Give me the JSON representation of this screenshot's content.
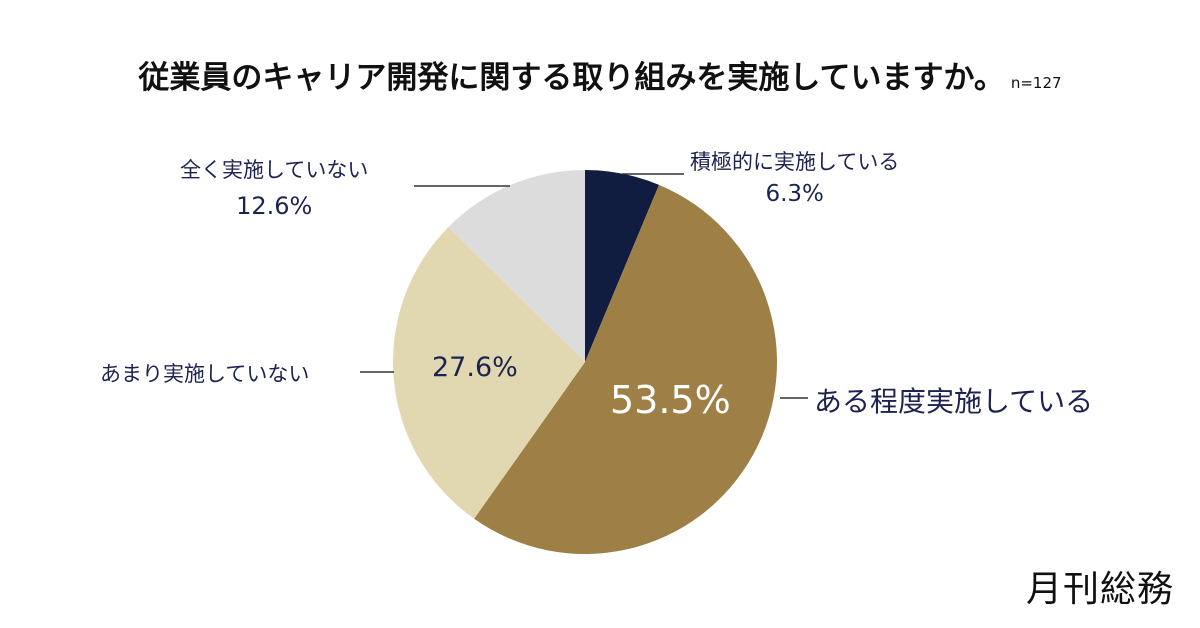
{
  "chart_data": {
    "type": "pie",
    "title": "従業員のキャリア開発に関する取り組みを実施していますか。",
    "sample_size": "n=127",
    "slices": [
      {
        "label": "積極的に実施している",
        "value": 6.3,
        "value_label": "6.3%",
        "color": "#111d40"
      },
      {
        "label": "ある程度実施している",
        "value": 53.5,
        "value_label": "53.5%",
        "color": "#9e8046"
      },
      {
        "label": "あまり実施していない",
        "value": 27.6,
        "value_label": "27.6%",
        "color": "#e1d8b1"
      },
      {
        "label": "全く実施していない",
        "value": 12.6,
        "value_label": "12.6%",
        "color": "#dcdcdc"
      }
    ],
    "start_angle": "12 o'clock",
    "direction": "clockwise"
  },
  "logo_text": "月刊総務"
}
